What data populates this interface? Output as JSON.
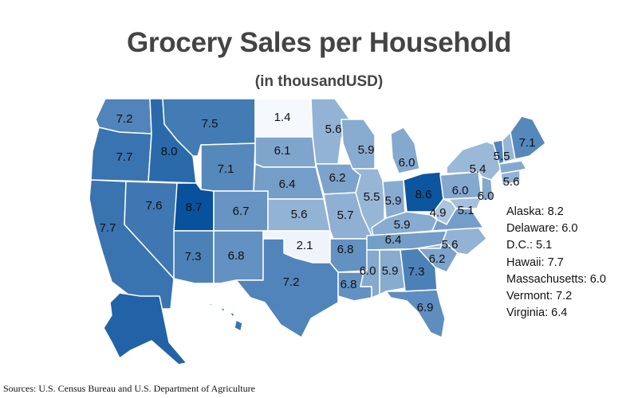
{
  "title": "Grocery Sales per Household",
  "subtitle": "(in thousandUSD)",
  "source": "Sources: U.S. Census Bureau and U.S. Department of Agriculture",
  "colors": {
    "min": "#f5f8fc",
    "max": "#08519c",
    "border": "#ffffff"
  },
  "scale": {
    "min": 1.4,
    "max": 8.7
  },
  "states": [
    {
      "code": "WA",
      "label": "7.2",
      "value": 7.2
    },
    {
      "code": "OR",
      "label": "7.7",
      "value": 7.7
    },
    {
      "code": "CA",
      "label": "7.7",
      "value": 7.7
    },
    {
      "code": "ID",
      "label": "8.0",
      "value": 8.0
    },
    {
      "code": "NV",
      "label": "7.6",
      "value": 7.6
    },
    {
      "code": "MT",
      "label": "7.5",
      "value": 7.5
    },
    {
      "code": "WY",
      "label": "7.1",
      "value": 7.1
    },
    {
      "code": "UT",
      "label": "8.7",
      "value": 8.7
    },
    {
      "code": "AZ",
      "label": "7.3",
      "value": 7.3
    },
    {
      "code": "CO",
      "label": "6.7",
      "value": 6.7
    },
    {
      "code": "NM",
      "label": "6.8",
      "value": 6.8
    },
    {
      "code": "ND",
      "label": "1.4",
      "value": 1.4
    },
    {
      "code": "SD",
      "label": "6.1",
      "value": 6.1
    },
    {
      "code": "NE",
      "label": "6.4",
      "value": 6.4
    },
    {
      "code": "KS",
      "label": "5.6",
      "value": 5.6
    },
    {
      "code": "OK",
      "label": "2.1",
      "value": 2.1
    },
    {
      "code": "TX",
      "label": "7.2",
      "value": 7.2
    },
    {
      "code": "MN",
      "label": "5.6",
      "value": 5.6
    },
    {
      "code": "IA",
      "label": "6.2",
      "value": 6.2
    },
    {
      "code": "MO",
      "label": "5.7",
      "value": 5.7
    },
    {
      "code": "AR",
      "label": "6.8",
      "value": 6.8
    },
    {
      "code": "LA",
      "label": "6.8",
      "value": 6.8
    },
    {
      "code": "WI",
      "label": "5.9",
      "value": 5.9
    },
    {
      "code": "IL",
      "label": "5.5",
      "value": 5.5
    },
    {
      "code": "MI",
      "label": "6.0",
      "value": 6.0
    },
    {
      "code": "IN",
      "label": "5.9",
      "value": 5.9
    },
    {
      "code": "OH",
      "label": "8.6",
      "value": 8.6
    },
    {
      "code": "KY",
      "label": "5.9",
      "value": 5.9
    },
    {
      "code": "TN",
      "label": "6.4",
      "value": 6.4
    },
    {
      "code": "MS",
      "label": "6.0",
      "value": 6.0
    },
    {
      "code": "AL",
      "label": "5.9",
      "value": 5.9
    },
    {
      "code": "GA",
      "label": "7.3",
      "value": 7.3
    },
    {
      "code": "FL",
      "label": "6.9",
      "value": 6.9
    },
    {
      "code": "SC",
      "label": "6.2",
      "value": 6.2
    },
    {
      "code": "NC",
      "label": "5.6",
      "value": 5.6
    },
    {
      "code": "WV",
      "label": "4.9",
      "value": 4.9
    },
    {
      "code": "VA",
      "label": "",
      "value": 6.4
    },
    {
      "code": "MD",
      "label": "5.1",
      "value": 5.1
    },
    {
      "code": "PA",
      "label": "6.0",
      "value": 6.0
    },
    {
      "code": "NY",
      "label": "5.4",
      "value": 5.4
    },
    {
      "code": "NJ",
      "label": "6.0",
      "value": 6.0
    },
    {
      "code": "CT",
      "label": "5.6",
      "value": 5.6
    },
    {
      "code": "MA",
      "label": "",
      "value": 6.0
    },
    {
      "code": "NH",
      "label": "5.5",
      "value": 5.5
    },
    {
      "code": "VT",
      "label": "",
      "value": 7.2
    },
    {
      "code": "ME",
      "label": "7.1",
      "value": 7.1
    },
    {
      "code": "AK",
      "label": "",
      "value": 8.2
    },
    {
      "code": "HI",
      "label": "",
      "value": 7.7
    }
  ],
  "notes": [
    "Alaska: 8.2",
    "Delaware: 6.0",
    "D.C.: 5.1",
    "Hawaii: 7.7",
    "Massachusetts: 6.0",
    "Vermont: 7.2",
    "Virginia: 6.4"
  ]
}
